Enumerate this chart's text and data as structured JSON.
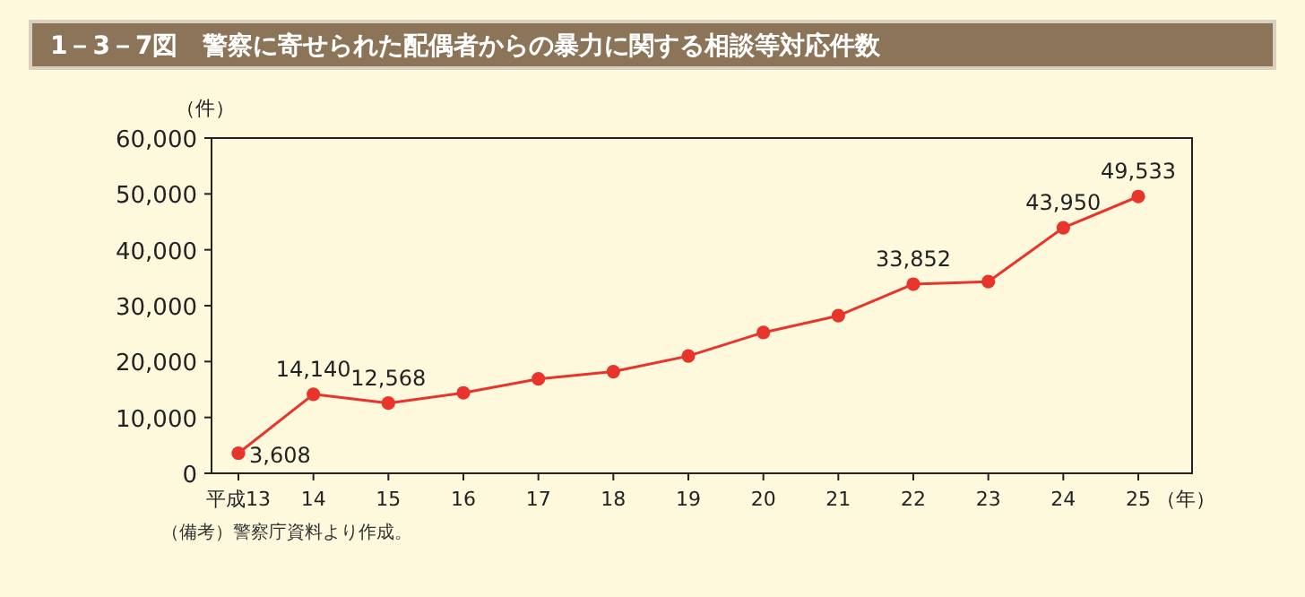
{
  "chart_data": {
    "type": "line",
    "title": "1－3－7図　警察に寄せられた配偶者からの暴力に関する相談等対応件数",
    "ylabel": "（件）",
    "xlabel": "（年）",
    "annotations": [
      "（備考）警察庁資料より作成。"
    ],
    "categories": [
      "平成13",
      "14",
      "15",
      "16",
      "17",
      "18",
      "19",
      "20",
      "21",
      "22",
      "23",
      "24",
      "25"
    ],
    "series": [
      {
        "color": "#e8352b",
        "values": [
          3608,
          14140,
          12568,
          14400,
          16900,
          18200,
          21000,
          25200,
          28200,
          33852,
          34300,
          43950,
          49533
        ],
        "value_labels": [
          "3,608",
          "14,140",
          "12,568",
          null,
          null,
          null,
          null,
          null,
          null,
          "33,852",
          null,
          "43,950",
          "49,533"
        ]
      }
    ],
    "ylim": [
      0,
      60000
    ],
    "yticks": [
      {
        "value": 0,
        "label": "0"
      },
      {
        "value": 10000,
        "label": "10,000"
      },
      {
        "value": 20000,
        "label": "20,000"
      },
      {
        "value": 30000,
        "label": "30,000"
      },
      {
        "value": 40000,
        "label": "40,000"
      },
      {
        "value": 50000,
        "label": "50,000"
      },
      {
        "value": 60000,
        "label": "60,000"
      }
    ],
    "grid": false,
    "marker": "circle",
    "line_style": "solid"
  }
}
